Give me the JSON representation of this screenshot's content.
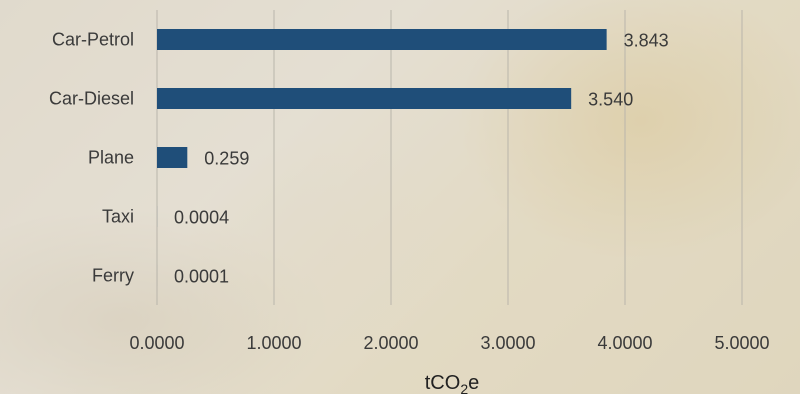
{
  "chart_data": {
    "type": "bar",
    "orientation": "horizontal",
    "categories": [
      "Car-Petrol",
      "Car-Diesel",
      "Plane",
      "Taxi",
      "Ferry"
    ],
    "values": [
      3.843,
      3.54,
      0.259,
      0.0004,
      0.0001
    ],
    "value_labels": [
      "3.843",
      "3.540",
      "0.259",
      "0.0004",
      "0.0001"
    ],
    "xlabel_main": "tCO",
    "xlabel_sub": "2",
    "xlabel_tail": "e",
    "xlim": [
      0,
      5
    ],
    "xticks": [
      0,
      1,
      2,
      3,
      4,
      5
    ],
    "xtick_labels": [
      "0.0000",
      "1.0000",
      "2.0000",
      "3.0000",
      "4.0000",
      "5.0000"
    ],
    "grid": "vertical",
    "colors": {
      "bar": "#1f4e79"
    }
  }
}
